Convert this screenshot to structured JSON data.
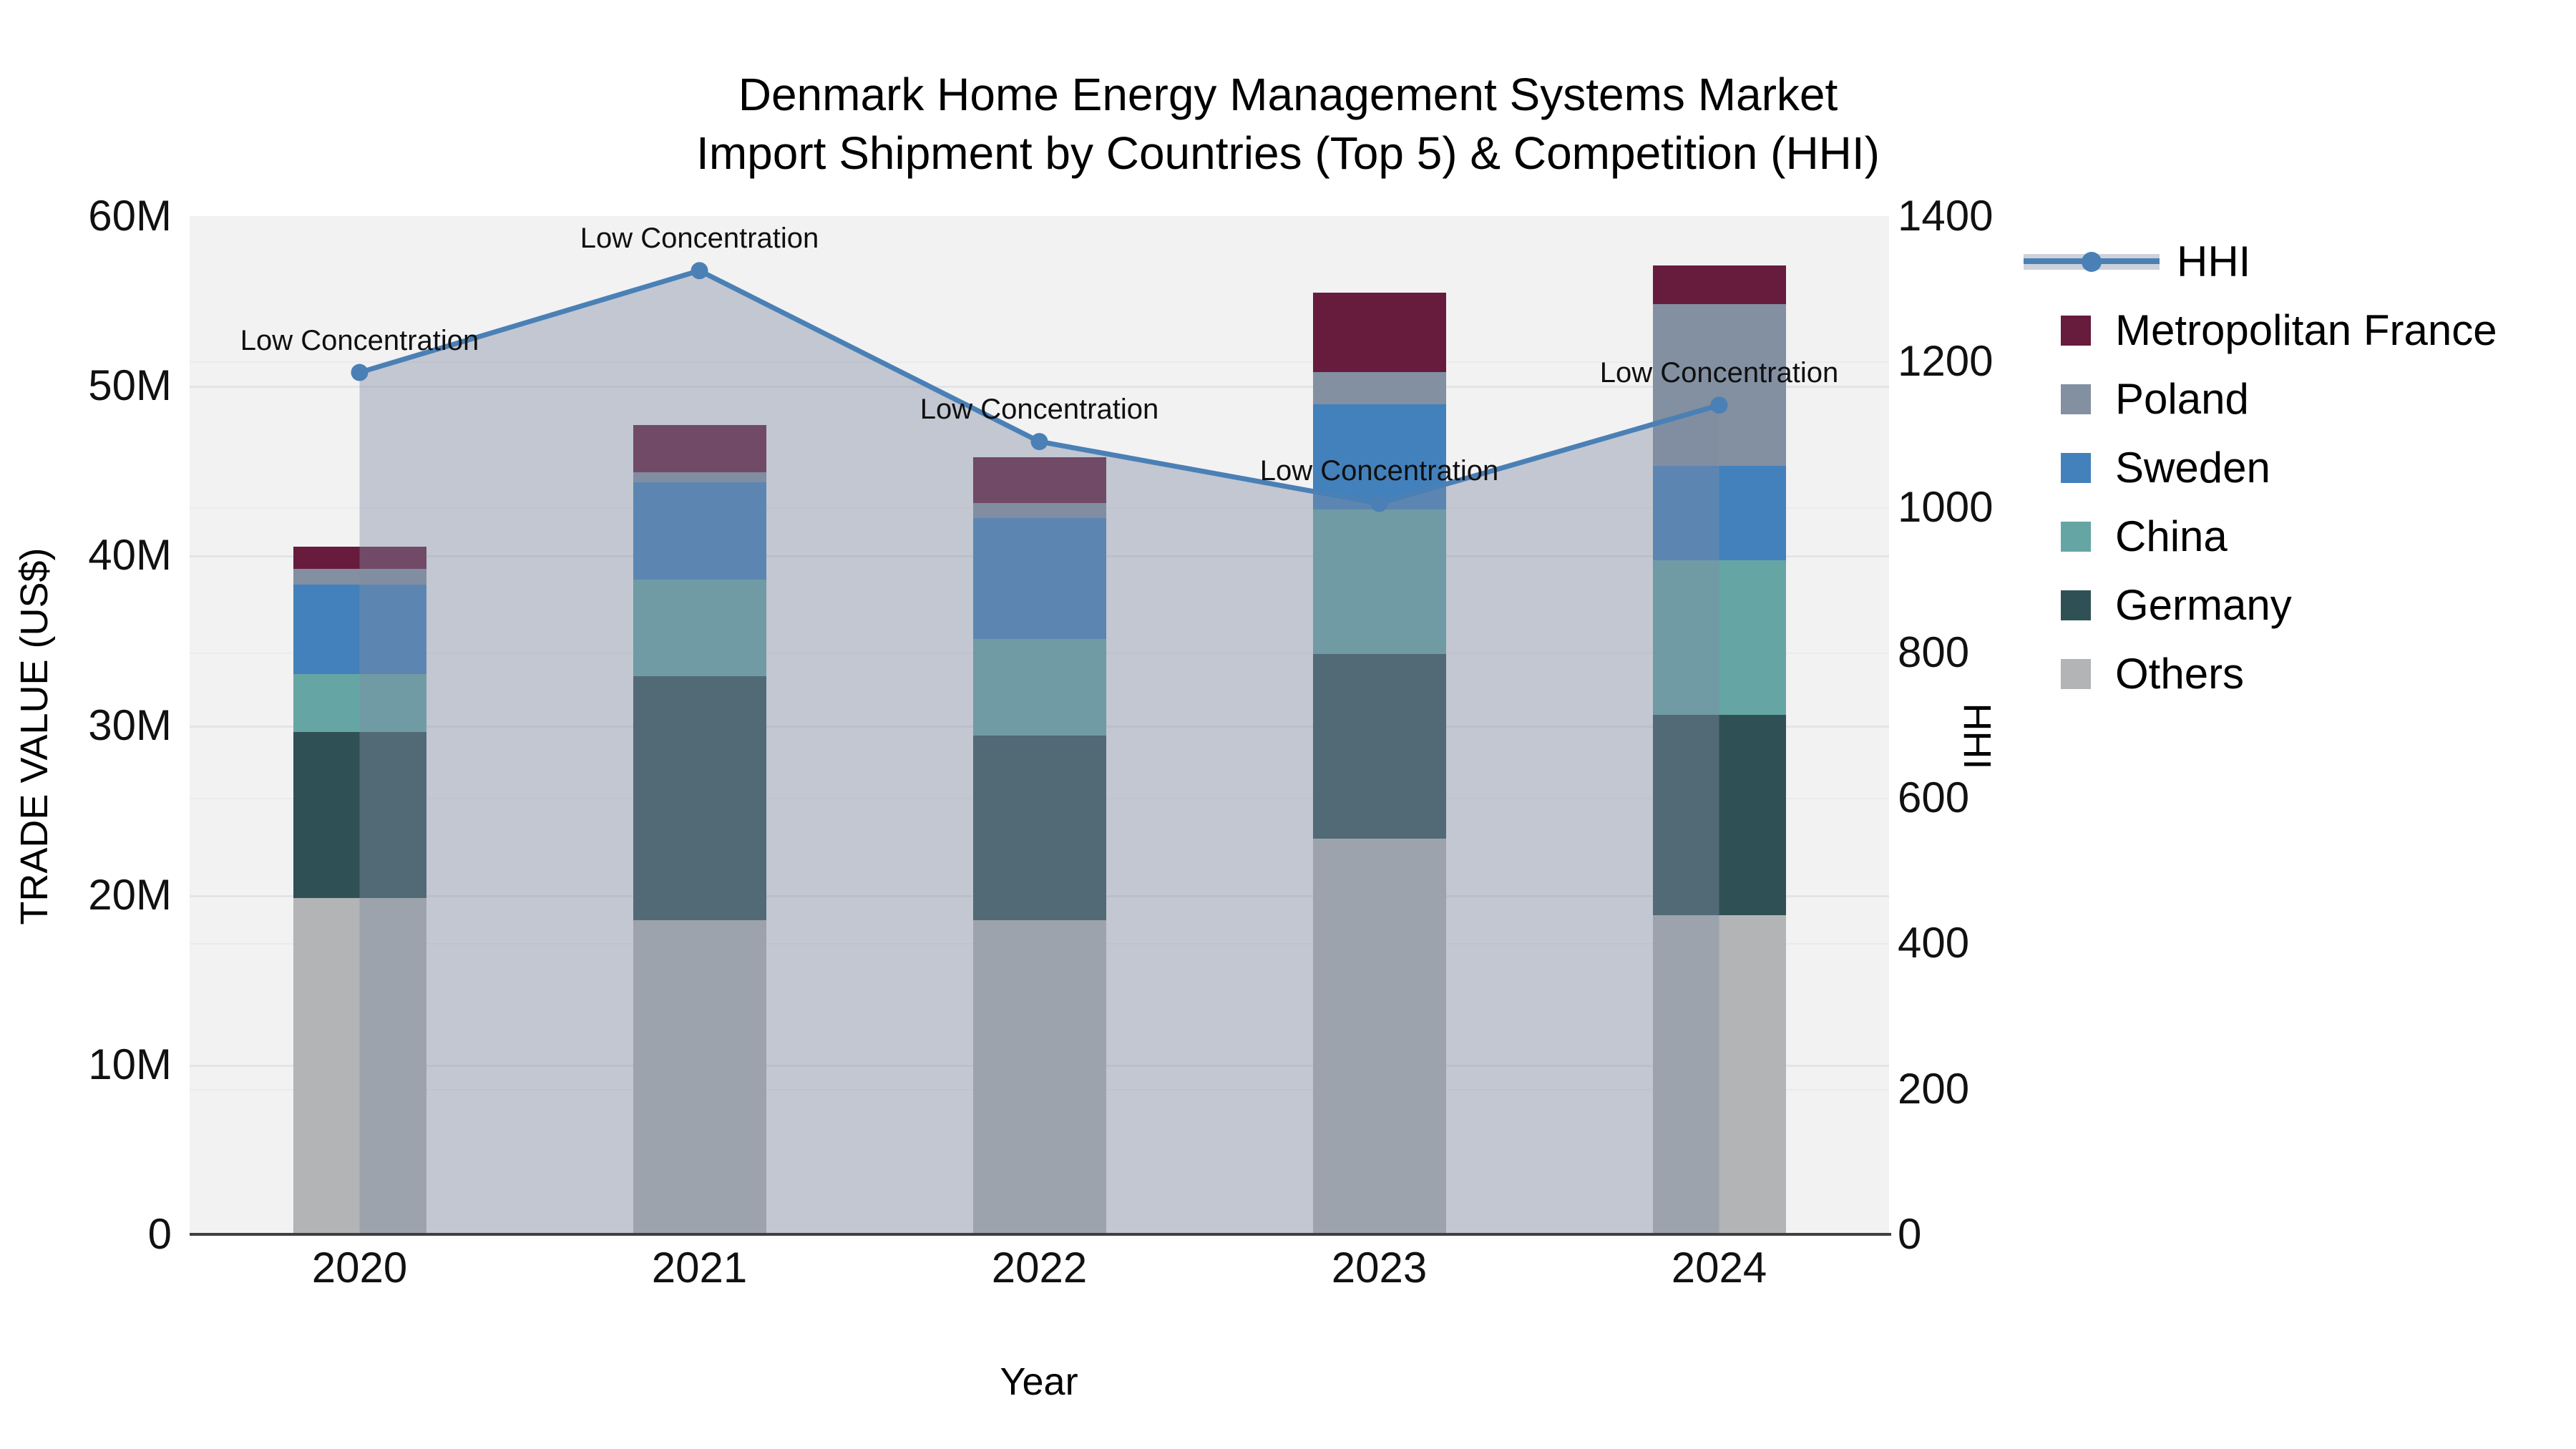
{
  "title": {
    "line1": "Denmark Home Energy Management Systems Market",
    "line2": "Import Shipment by Countries (Top 5) & Competition (HHI)"
  },
  "axes": {
    "x_title": "Year",
    "y_left_title": "TRADE VALUE (US$)",
    "y_right_title": "HHI",
    "y_left_ticks": [
      "0",
      "10M",
      "20M",
      "30M",
      "40M",
      "50M",
      "60M"
    ],
    "y_left_max_musd": 60,
    "y_right_ticks": [
      "0",
      "200",
      "400",
      "600",
      "800",
      "1000",
      "1200",
      "1400"
    ],
    "y_right_max": 1400
  },
  "chart_data": {
    "type": "bar",
    "subtype": "stacked-bars-with-line-overlay",
    "categories": [
      "2020",
      "2021",
      "2022",
      "2023",
      "2024"
    ],
    "value_unit": "million US$",
    "series": [
      {
        "name": "Others",
        "color": "#b2b4b6",
        "values": [
          19.8,
          18.5,
          18.5,
          23.3,
          18.8
        ]
      },
      {
        "name": "Germany",
        "color": "#2f5156",
        "values": [
          9.8,
          14.4,
          10.9,
          10.9,
          11.8
        ]
      },
      {
        "name": "China",
        "color": "#65a6a5",
        "values": [
          3.4,
          5.7,
          5.7,
          8.5,
          9.1
        ]
      },
      {
        "name": "Sweden",
        "color": "#4381bc",
        "values": [
          5.3,
          5.7,
          7.1,
          6.2,
          5.6
        ]
      },
      {
        "name": "Poland",
        "color": "#8290a2",
        "values": [
          0.9,
          0.6,
          0.9,
          1.9,
          9.5
        ]
      },
      {
        "name": "Metropolitan France",
        "color": "#671b3d",
        "values": [
          1.3,
          2.8,
          2.7,
          4.7,
          2.3
        ]
      }
    ],
    "line_series": {
      "name": "HHI",
      "color": "#4a80b5",
      "area_fill": "rgba(128,140,162,0.42)",
      "values": [
        1185,
        1325,
        1090,
        1005,
        1140
      ],
      "axis": "right"
    },
    "annotations": [
      {
        "x": "2020",
        "text": "Low Concentration"
      },
      {
        "x": "2021",
        "text": "Low Concentration"
      },
      {
        "x": "2022",
        "text": "Low Concentration"
      },
      {
        "x": "2023",
        "text": "Low Concentration"
      },
      {
        "x": "2024",
        "text": "Low Concentration"
      }
    ],
    "legend_order": [
      "HHI",
      "Metropolitan France",
      "Poland",
      "Sweden",
      "China",
      "Germany",
      "Others"
    ],
    "grid": true,
    "legend_position": "right"
  }
}
